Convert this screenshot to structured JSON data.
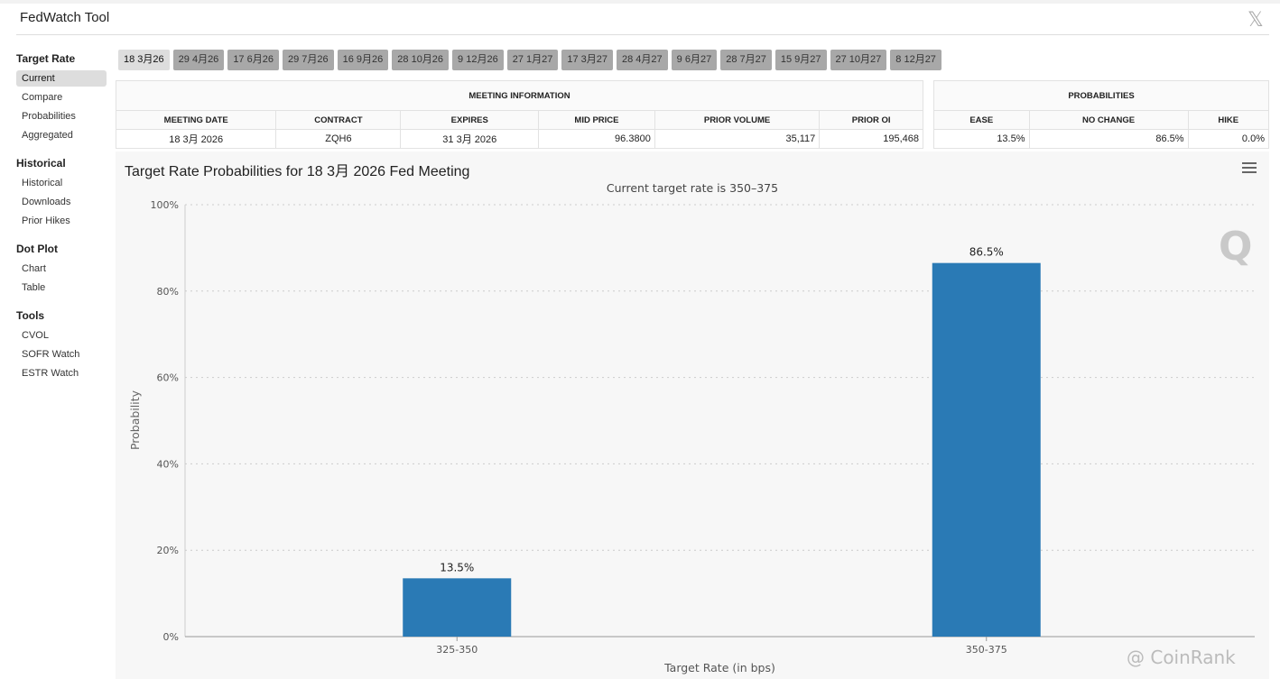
{
  "header": {
    "title": "FedWatch Tool",
    "close_icon": "x-logo-icon"
  },
  "sidebar": {
    "sections": [
      {
        "title": "Target Rate",
        "items": [
          "Current",
          "Compare",
          "Probabilities",
          "Aggregated"
        ]
      },
      {
        "title": "Historical",
        "items": [
          "Historical",
          "Downloads",
          "Prior Hikes"
        ]
      },
      {
        "title": "Dot Plot",
        "items": [
          "Chart",
          "Table"
        ]
      },
      {
        "title": "Tools",
        "items": [
          "CVOL",
          "SOFR Watch",
          "ESTR Watch"
        ]
      }
    ]
  },
  "tabs": [
    "18 3月26",
    "29 4月26",
    "17 6月26",
    "29 7月26",
    "16 9月26",
    "28 10月26",
    "9 12月26",
    "27 1月27",
    "17 3月27",
    "28 4月27",
    "9 6月27",
    "28 7月27",
    "15 9月27",
    "27 10月27",
    "8 12月27"
  ],
  "meeting_info": {
    "title": "MEETING INFORMATION",
    "headers": [
      "MEETING DATE",
      "CONTRACT",
      "EXPIRES",
      "MID PRICE",
      "PRIOR VOLUME",
      "PRIOR OI"
    ],
    "values": [
      "18 3月 2026",
      "ZQH6",
      "31 3月 2026",
      "96.3800",
      "35,117",
      "195,468"
    ]
  },
  "probabilities": {
    "title": "PROBABILITIES",
    "headers": [
      "EASE",
      "NO CHANGE",
      "HIKE"
    ],
    "values": [
      "13.5%",
      "86.5%",
      "0.0%"
    ]
  },
  "watermark": "@ CoinRank",
  "chart_data": {
    "type": "bar",
    "title": "Target Rate Probabilities for 18 3月 2026 Fed Meeting",
    "subtitle": "Current target rate is 350–375",
    "xlabel": "Target Rate (in bps)",
    "ylabel": "Probability",
    "categories": [
      "325-350",
      "350-375"
    ],
    "values": [
      13.5,
      86.5
    ],
    "labels": [
      "13.5%",
      "86.5%"
    ],
    "ylim": [
      0,
      100
    ],
    "yticks": [
      "0%",
      "20%",
      "40%",
      "60%",
      "80%",
      "100%"
    ],
    "color": "#2a7ab5",
    "grid": true
  }
}
